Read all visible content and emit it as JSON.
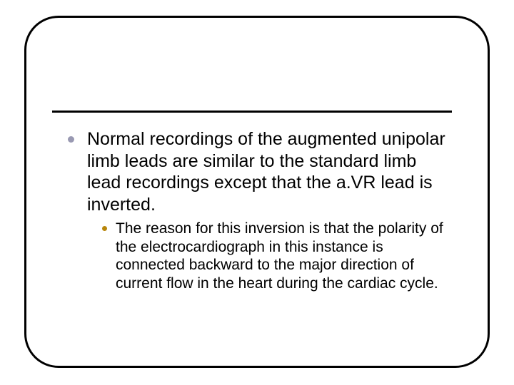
{
  "slide": {
    "frame_border_color": "#000000",
    "frame_border_radius": 48,
    "divider_color": "#000000",
    "bullet_main_color": "#9999b2",
    "bullet_sub_color": "#b8860b",
    "background_color": "#ffffff",
    "main_fontsize": 25,
    "sub_fontsize": 21,
    "text_color": "#000000",
    "main_text": "Normal recordings of the augmented unipolar limb leads are similar to the standard limb lead recordings except that the a.VR lead is inverted.",
    "sub_text": "The reason for this inversion is that the polarity of the electrocardiograph in this instance is connected backward to the major direction of current flow in the heart during the cardiac cycle."
  }
}
